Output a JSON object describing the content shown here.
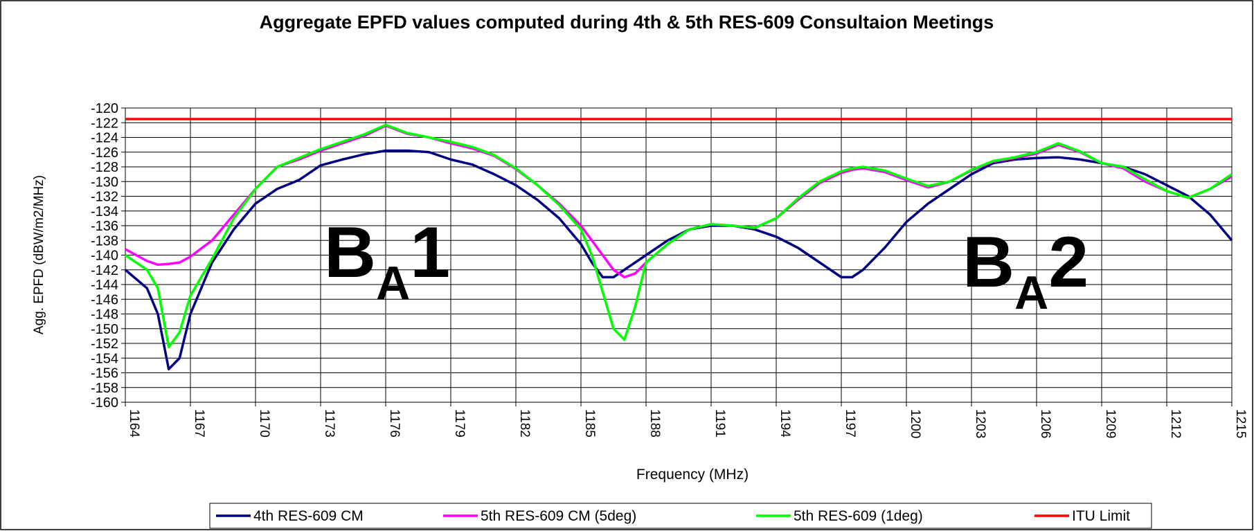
{
  "chart_data": {
    "type": "line",
    "title": "Aggregate EPFD values computed during 4th & 5th RES-609 Consultaion Meetings",
    "xlabel": "Frequency (MHz)",
    "ylabel": "Agg. EPFD (dBW/m2/MHz)",
    "x": [
      1164,
      1165,
      1165.5,
      1166,
      1166.5,
      1167,
      1168,
      1169,
      1170,
      1171,
      1172,
      1173,
      1174,
      1175,
      1176,
      1177,
      1178,
      1179,
      1180,
      1181,
      1182,
      1183,
      1184,
      1185,
      1185.5,
      1186,
      1186.5,
      1187,
      1187.5,
      1188,
      1189,
      1190,
      1191,
      1192,
      1193,
      1194,
      1195,
      1196,
      1197,
      1197.5,
      1198,
      1199,
      1200,
      1201,
      1202,
      1203,
      1204,
      1205,
      1206,
      1207,
      1208,
      1209,
      1210,
      1211,
      1212,
      1213,
      1214,
      1215
    ],
    "series": [
      {
        "name": "4th RES-609 CM",
        "color": "#000080",
        "values": [
          -142,
          -144.5,
          -148,
          -155.5,
          -154,
          -148,
          -141,
          -136.5,
          -133,
          -131,
          -129.8,
          -127.8,
          -127,
          -126.3,
          -125.8,
          -125.8,
          -126,
          -127,
          -127.7,
          -129,
          -130.5,
          -132.5,
          -135,
          -138.5,
          -141,
          -143,
          -143,
          -142,
          -141,
          -140,
          -138,
          -136.5,
          -136,
          -136,
          -136.5,
          -137.5,
          -139,
          -141,
          -143,
          -143,
          -142,
          -139,
          -135.5,
          -133,
          -131,
          -129,
          -127.5,
          -127,
          -126.8,
          -126.7,
          -127,
          -127.5,
          -128,
          -129,
          -130.5,
          -132,
          -134.5,
          -138
        ]
      },
      {
        "name": "5th RES-609 CM (5deg)",
        "color": "#ff00ff",
        "values": [
          -139.2,
          -140.8,
          -141.3,
          -141.2,
          -141,
          -140.2,
          -138,
          -134.5,
          -131,
          -128,
          -127,
          -125.8,
          -124.8,
          -123.8,
          -122.4,
          -123.5,
          -124,
          -124.8,
          -125.5,
          -126.5,
          -128.3,
          -130.5,
          -133,
          -136,
          -138,
          -140,
          -142,
          -143,
          -142.5,
          -141,
          -138.5,
          -136.5,
          -135.8,
          -136,
          -136.3,
          -135,
          -132.5,
          -130.2,
          -128.8,
          -128.4,
          -128.2,
          -128.7,
          -129.8,
          -130.8,
          -130,
          -128.5,
          -127.3,
          -126.8,
          -126.2,
          -125,
          -126,
          -127.5,
          -128.2,
          -130,
          -131.3,
          -132.2,
          -131,
          -129.3
        ]
      },
      {
        "name": "5th RES-609 (1deg)",
        "color": "#00ff00",
        "values": [
          -140,
          -142,
          -144.5,
          -152.5,
          -150.5,
          -145.5,
          -140.5,
          -135,
          -131,
          -128,
          -126.8,
          -125.6,
          -124.6,
          -123.6,
          -122.3,
          -123.4,
          -124,
          -124.6,
          -125.3,
          -126.4,
          -128.2,
          -130.5,
          -133.2,
          -136.5,
          -140,
          -145,
          -150,
          -151.5,
          -147,
          -141,
          -138.5,
          -136.5,
          -135.8,
          -136,
          -136.3,
          -135,
          -132.3,
          -130,
          -128.6,
          -128.2,
          -128,
          -128.5,
          -129.6,
          -130.6,
          -130,
          -128.4,
          -127.2,
          -126.7,
          -126,
          -124.8,
          -125.9,
          -127.5,
          -128,
          -129.7,
          -131.3,
          -132.2,
          -131,
          -129
        ]
      },
      {
        "name": "ITU Limit",
        "color": "#ff0000",
        "values": [
          -121.5,
          -121.5,
          -121.5,
          -121.5,
          -121.5,
          -121.5,
          -121.5,
          -121.5,
          -121.5,
          -121.5,
          -121.5,
          -121.5,
          -121.5,
          -121.5,
          -121.5,
          -121.5,
          -121.5,
          -121.5,
          -121.5,
          -121.5,
          -121.5,
          -121.5,
          -121.5,
          -121.5,
          -121.5,
          -121.5,
          -121.5,
          -121.5,
          -121.5,
          -121.5,
          -121.5,
          -121.5,
          -121.5,
          -121.5,
          -121.5,
          -121.5,
          -121.5,
          -121.5,
          -121.5,
          -121.5,
          -121.5,
          -121.5,
          -121.5,
          -121.5,
          -121.5,
          -121.5,
          -121.5,
          -121.5,
          -121.5,
          -121.5,
          -121.5,
          -121.5,
          -121.5,
          -121.5,
          -121.5,
          -121.5,
          -121.5,
          -121.5
        ]
      }
    ],
    "xlim": [
      1164,
      1215
    ],
    "xticks": [
      1164,
      1167,
      1170,
      1173,
      1176,
      1179,
      1182,
      1185,
      1188,
      1191,
      1194,
      1197,
      1200,
      1203,
      1206,
      1209,
      1212,
      1215
    ],
    "ylim": [
      -160,
      -120
    ],
    "yticks": [
      -160,
      -158,
      -156,
      -154,
      -152,
      -150,
      -148,
      -146,
      -144,
      -142,
      -140,
      -138,
      -136,
      -134,
      -132,
      -130,
      -128,
      -126,
      -124,
      -122,
      -120
    ],
    "grid": true,
    "legend": "bottom",
    "annotations": [
      {
        "text": "B",
        "sub": "A",
        "suffix": "1"
      },
      {
        "text": "B",
        "sub": "A",
        "suffix": "2"
      }
    ]
  }
}
